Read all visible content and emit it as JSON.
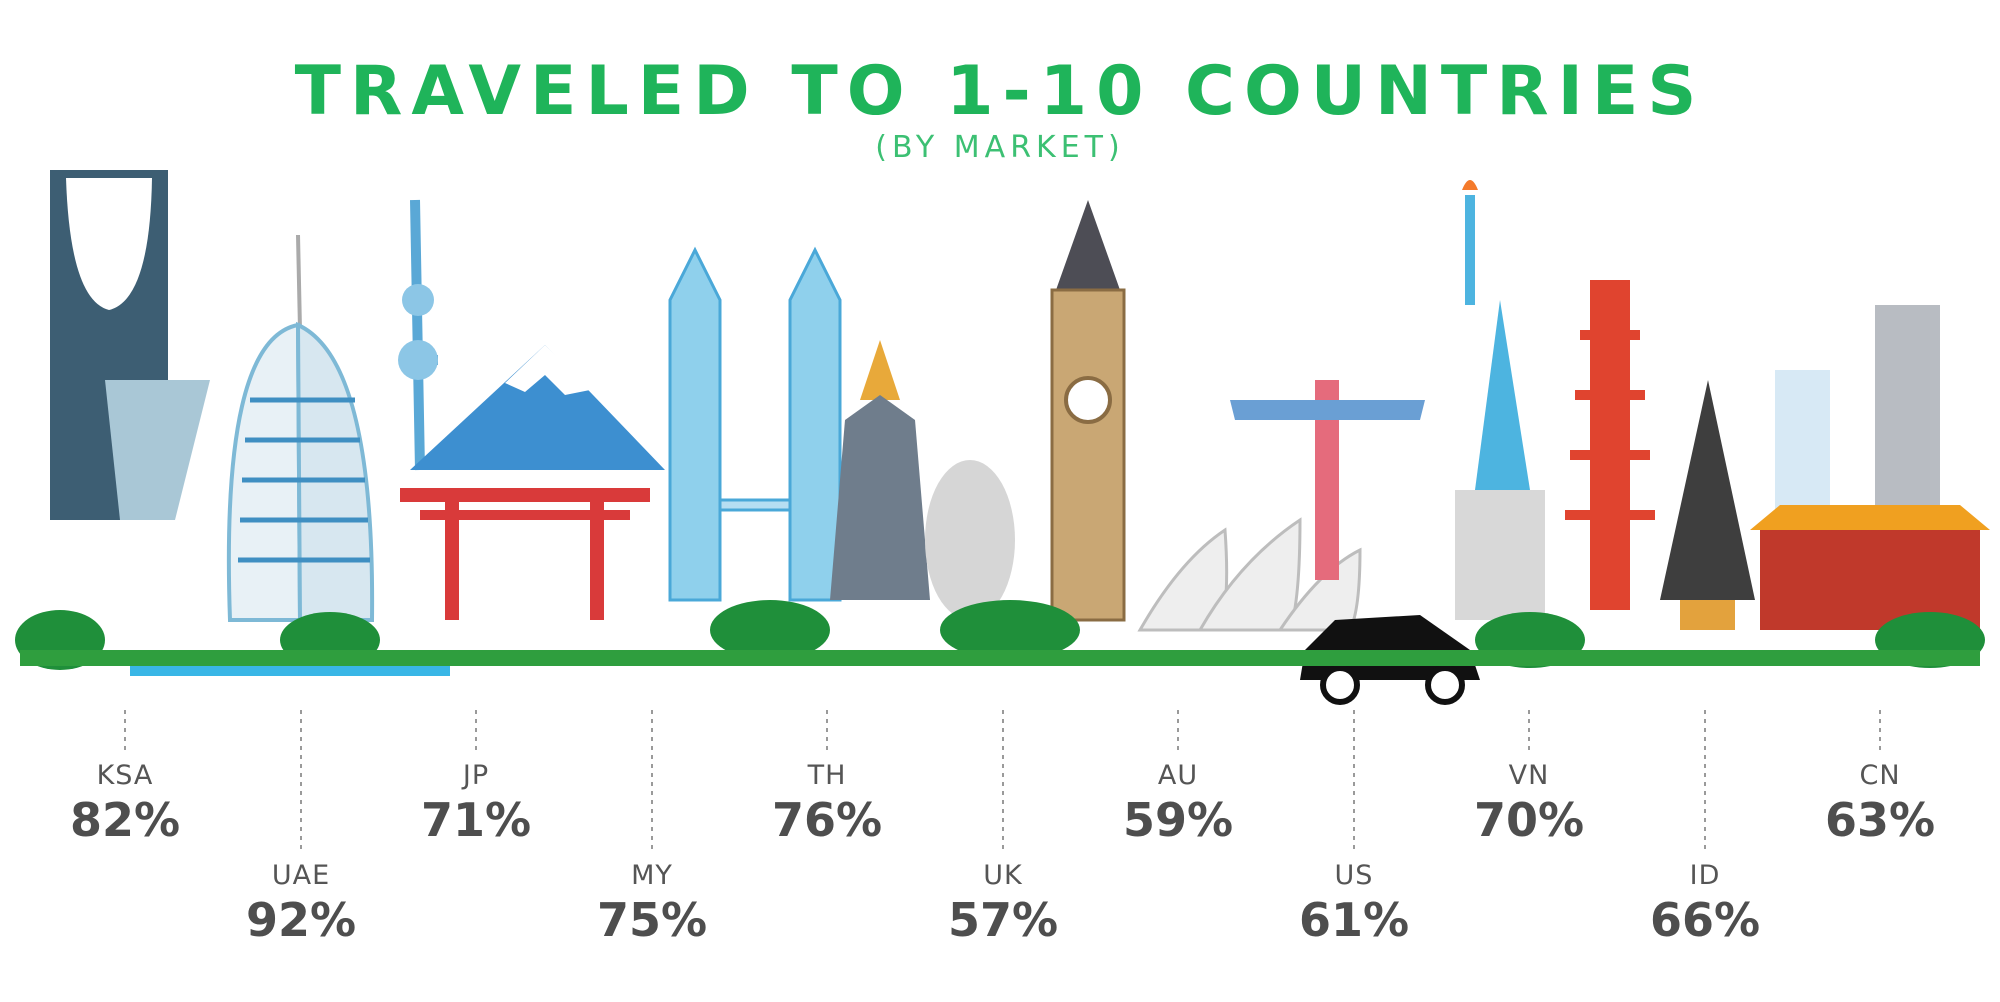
{
  "title": "TRAVELED TO 1-10 COUNTRIES",
  "subtitle": "(BY MARKET)",
  "colors": {
    "title": "#1fb45a",
    "ground": "#2f9e3e",
    "water": "#39b6e6",
    "label": "#4e4e4e"
  },
  "chart_data": {
    "type": "bar",
    "title": "TRAVELED TO 1-10 COUNTRIES",
    "subtitle": "(BY MARKET)",
    "unit": "%",
    "categories": [
      "KSA",
      "UAE",
      "JP",
      "MY",
      "TH",
      "UK",
      "AU",
      "US",
      "VN",
      "ID",
      "CN"
    ],
    "values": [
      82,
      92,
      71,
      75,
      76,
      57,
      59,
      61,
      70,
      66,
      63
    ],
    "labels": [
      "82%",
      "92%",
      "71%",
      "75%",
      "76%",
      "57%",
      "59%",
      "61%",
      "70%",
      "66%",
      "63%"
    ],
    "grid": false,
    "legend": "none"
  }
}
